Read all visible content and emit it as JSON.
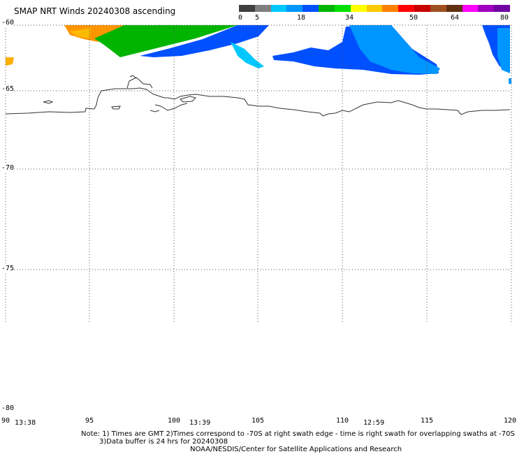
{
  "title": "SMAP NRT Winds 20240308 ascending",
  "colorbar": {
    "labels": [
      "0",
      "5",
      "18",
      "34",
      "50",
      "64",
      "80"
    ],
    "colors": [
      "#404040",
      "#7f7f7f",
      "#00c8ff",
      "#0096ff",
      "#0050ff",
      "#00b400",
      "#00e000",
      "#ffff00",
      "#ffc800",
      "#ff8000",
      "#ff0000",
      "#c80000",
      "#a05020",
      "#603010",
      "#ff00ff",
      "#a000c0",
      "#7000a0"
    ]
  },
  "axes": {
    "lat_labels": [
      "-60",
      "-65",
      "-70",
      "-75",
      "-80"
    ],
    "lon_labels": [
      "90",
      "95",
      "100",
      "105",
      "110",
      "115",
      "120"
    ]
  },
  "times": [
    "13:38",
    "13:39",
    "12:59"
  ],
  "notes": {
    "line1": "Note: 1) Times are GMT 2)Times correspond to -70S at right swath edge - time is right swath for overlapping swaths at -70S",
    "line2": "3)Data buffer is 24 hrs for 20240308",
    "line3": "NOAA/NESDIS/Center for Satellite Applications and Research"
  },
  "wind_colors": {
    "light_blue": "#00c8ff",
    "blue": "#0050ff",
    "mid_blue": "#0096ff",
    "green": "#00b400",
    "orange": "#ff9600",
    "yellow": "#ffd200"
  }
}
